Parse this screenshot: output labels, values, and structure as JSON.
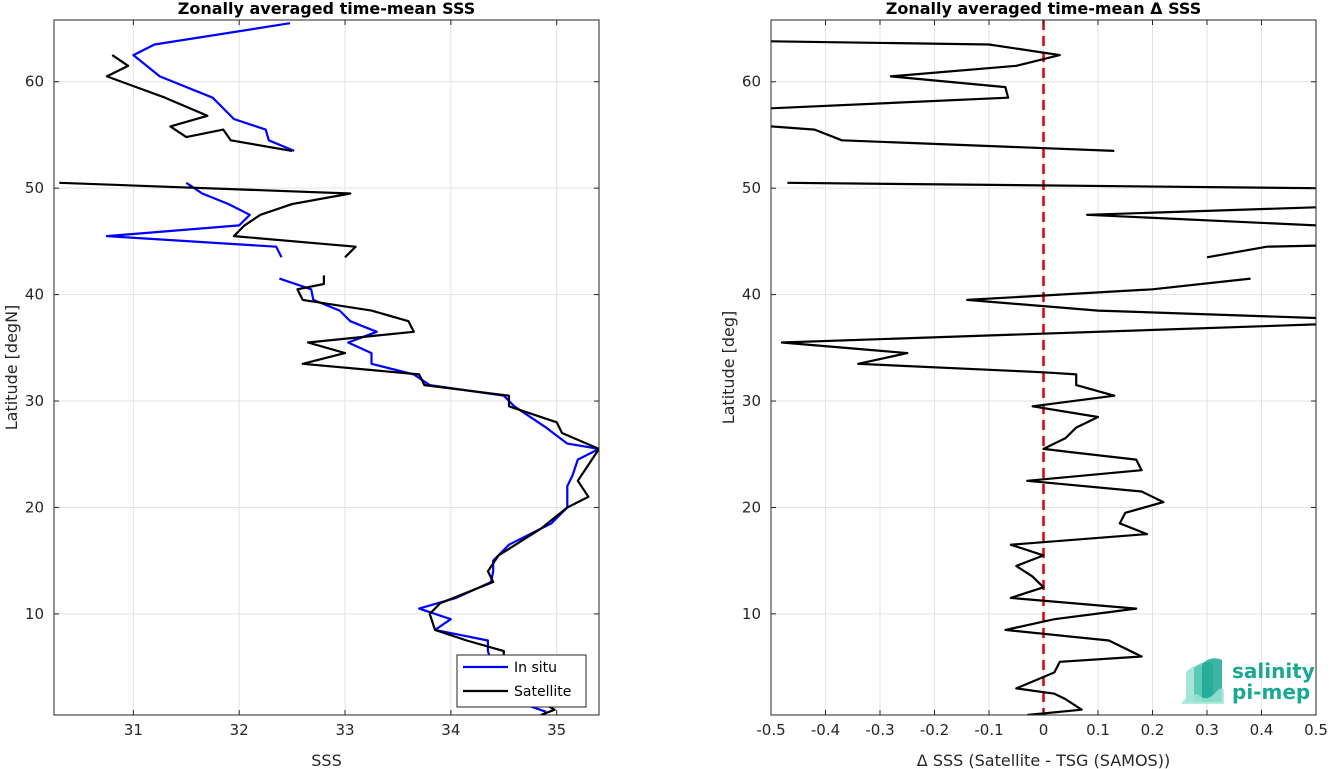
{
  "chart_data": [
    {
      "type": "line",
      "title": "Zonally averaged time-mean SSS",
      "xlabel": "SSS",
      "ylabel": "Latitude [degN]",
      "xlim": [
        30.25,
        35.4
      ],
      "ylim": [
        0.5,
        65.8
      ],
      "x_ticks": [
        31,
        32,
        33,
        34,
        35
      ],
      "y_ticks": [
        10,
        20,
        30,
        40,
        50,
        60
      ],
      "grid": true,
      "legend": {
        "position": "bottom-right",
        "entries": [
          "In situ",
          "Satellite"
        ]
      },
      "series": [
        {
          "name": "In situ",
          "color": "#0000ff",
          "segments": [
            [
              [
                32.48,
                65.5
              ],
              [
                31.2,
                63.5
              ],
              [
                31.0,
                62.5
              ],
              [
                31.25,
                60.5
              ],
              [
                31.75,
                58.5
              ],
              [
                31.95,
                56.5
              ],
              [
                32.25,
                55.5
              ],
              [
                32.28,
                54.5
              ],
              [
                32.52,
                53.5
              ]
            ],
            [
              [
                31.5,
                50.5
              ],
              [
                31.65,
                49.5
              ],
              [
                31.9,
                48.5
              ],
              [
                32.1,
                47.5
              ],
              [
                32.0,
                46.5
              ],
              [
                30.75,
                45.5
              ],
              [
                32.35,
                44.5
              ],
              [
                32.4,
                43.5
              ]
            ],
            [
              [
                32.38,
                41.5
              ],
              [
                32.68,
                40.5
              ],
              [
                32.7,
                39.5
              ],
              [
                32.95,
                38.5
              ],
              [
                33.05,
                37.5
              ],
              [
                33.3,
                36.5
              ],
              [
                33.03,
                35.5
              ],
              [
                33.25,
                34.5
              ],
              [
                33.25,
                33.5
              ],
              [
                33.65,
                32.5
              ],
              [
                33.8,
                31.5
              ],
              [
                34.5,
                30.5
              ],
              [
                34.6,
                29.5
              ],
              [
                34.9,
                27.5
              ],
              [
                35.1,
                26.0
              ],
              [
                35.4,
                25.5
              ],
              [
                35.2,
                24.5
              ],
              [
                35.15,
                23.0
              ],
              [
                35.1,
                22.0
              ],
              [
                35.1,
                21.0
              ],
              [
                35.1,
                20.0
              ],
              [
                34.95,
                18.5
              ],
              [
                34.55,
                16.5
              ],
              [
                34.4,
                15.0
              ],
              [
                34.4,
                14.0
              ],
              [
                34.38,
                13.0
              ],
              [
                34.05,
                11.5
              ],
              [
                33.7,
                10.5
              ],
              [
                34.0,
                9.5
              ],
              [
                33.85,
                8.5
              ],
              [
                34.35,
                7.5
              ],
              [
                34.35,
                6.5
              ],
              [
                34.4,
                5.0
              ],
              [
                34.55,
                3.5
              ],
              [
                34.8,
                2.5
              ],
              [
                34.7,
                1.5
              ],
              [
                34.9,
                0.8
              ]
            ]
          ]
        },
        {
          "name": "Satellite",
          "color": "#000000",
          "segments": [
            [
              [
                30.8,
                62.5
              ],
              [
                30.95,
                61.5
              ],
              [
                30.75,
                60.5
              ],
              [
                31.3,
                58.5
              ],
              [
                31.7,
                56.8
              ],
              [
                31.35,
                55.8
              ],
              [
                31.5,
                54.8
              ],
              [
                31.85,
                55.5
              ],
              [
                31.92,
                54.5
              ],
              [
                32.5,
                53.5
              ]
            ],
            [
              [
                30.3,
                50.5
              ],
              [
                33.05,
                49.5
              ],
              [
                32.5,
                48.5
              ],
              [
                32.2,
                47.5
              ],
              [
                32.05,
                46.5
              ],
              [
                31.95,
                45.5
              ],
              [
                33.1,
                44.5
              ],
              [
                33.0,
                43.5
              ]
            ],
            [
              [
                32.8,
                41.8
              ],
              [
                32.8,
                41.0
              ],
              [
                32.55,
                40.5
              ],
              [
                32.6,
                39.5
              ],
              [
                33.25,
                38.5
              ],
              [
                33.6,
                37.5
              ],
              [
                33.65,
                36.5
              ],
              [
                32.65,
                35.5
              ],
              [
                33.0,
                34.5
              ],
              [
                32.6,
                33.5
              ],
              [
                33.7,
                32.5
              ],
              [
                33.75,
                31.5
              ],
              [
                34.55,
                30.5
              ],
              [
                34.55,
                29.5
              ],
              [
                35.0,
                28.0
              ],
              [
                35.05,
                27.0
              ],
              [
                35.4,
                25.5
              ],
              [
                35.3,
                24.0
              ],
              [
                35.2,
                22.5
              ],
              [
                35.3,
                21.0
              ],
              [
                35.1,
                20.0
              ],
              [
                34.85,
                18.0
              ],
              [
                34.45,
                15.5
              ],
              [
                34.35,
                14.0
              ],
              [
                34.4,
                13.0
              ],
              [
                33.9,
                11.0
              ],
              [
                33.8,
                10.0
              ],
              [
                33.85,
                8.5
              ],
              [
                34.15,
                7.5
              ],
              [
                34.5,
                6.5
              ],
              [
                34.5,
                5.0
              ],
              [
                34.6,
                3.5
              ],
              [
                34.8,
                2.0
              ],
              [
                34.98,
                1.0
              ],
              [
                34.85,
                0.5
              ]
            ]
          ]
        }
      ]
    },
    {
      "type": "line",
      "title": "Zonally averaged time-mean Δ SSS",
      "xlabel": "Δ SSS (Satellite - TSG (SAMOS))",
      "ylabel": "Latitude [deg]",
      "xlim": [
        -0.5,
        0.5
      ],
      "ylim": [
        0.5,
        65.8
      ],
      "x_ticks": [
        -0.5,
        -0.4,
        -0.3,
        -0.2,
        -0.1,
        0,
        0.1,
        0.2,
        0.3,
        0.4,
        0.5
      ],
      "x_tick_labels": [
        "-0.5",
        "-0.4",
        "-0.3",
        "-0.2",
        "-0.1",
        "0",
        "0.1",
        "0.2",
        "0.3",
        "0.4",
        "0.5"
      ],
      "y_ticks": [
        10,
        20,
        30,
        40,
        50,
        60
      ],
      "grid": true,
      "reference_line": {
        "x": 0,
        "color": "#dd0000",
        "style": "dashed"
      },
      "series": [
        {
          "color": "#000000",
          "segments": [
            [
              [
                -0.5,
                63.8
              ],
              [
                -0.1,
                63.5
              ],
              [
                0.03,
                62.5
              ],
              [
                -0.05,
                61.5
              ],
              [
                -0.28,
                60.5
              ],
              [
                -0.07,
                59.5
              ],
              [
                -0.065,
                58.5
              ],
              [
                -0.5,
                57.5
              ]
            ],
            [
              [
                -0.5,
                55.8
              ],
              [
                -0.42,
                55.5
              ],
              [
                -0.37,
                54.5
              ],
              [
                0.13,
                53.5
              ]
            ],
            [
              [
                -0.47,
                50.5
              ],
              [
                0.5,
                50.0
              ]
            ],
            [
              [
                0.5,
                48.2
              ],
              [
                0.08,
                47.5
              ],
              [
                0.5,
                46.5
              ]
            ],
            [
              [
                0.5,
                44.6
              ],
              [
                0.41,
                44.5
              ],
              [
                0.3,
                43.5
              ]
            ],
            [
              [
                0.38,
                41.5
              ],
              [
                0.2,
                40.5
              ],
              [
                -0.14,
                39.5
              ],
              [
                0.1,
                38.5
              ],
              [
                0.5,
                37.8
              ]
            ],
            [
              [
                0.5,
                37.2
              ],
              [
                -0.48,
                35.5
              ],
              [
                -0.25,
                34.5
              ],
              [
                -0.34,
                33.5
              ],
              [
                0.0,
                32.7
              ],
              [
                0.06,
                32.5
              ],
              [
                0.06,
                31.5
              ],
              [
                0.13,
                30.5
              ],
              [
                -0.02,
                29.5
              ],
              [
                0.1,
                28.5
              ],
              [
                0.06,
                27.5
              ],
              [
                0.04,
                26.5
              ],
              [
                0.0,
                25.5
              ],
              [
                0.05,
                25.2
              ],
              [
                0.17,
                24.5
              ],
              [
                0.18,
                23.5
              ],
              [
                -0.03,
                22.5
              ],
              [
                0.18,
                21.5
              ],
              [
                0.22,
                20.5
              ],
              [
                0.15,
                19.5
              ],
              [
                0.14,
                18.5
              ],
              [
                0.19,
                17.5
              ],
              [
                -0.06,
                16.5
              ],
              [
                0.0,
                15.5
              ],
              [
                -0.05,
                14.5
              ],
              [
                -0.02,
                13.5
              ],
              [
                0.0,
                12.5
              ],
              [
                -0.06,
                11.5
              ],
              [
                0.17,
                10.5
              ],
              [
                0.02,
                9.5
              ],
              [
                -0.07,
                8.5
              ],
              [
                0.12,
                7.5
              ],
              [
                0.18,
                6.0
              ],
              [
                0.03,
                5.5
              ],
              [
                0.02,
                4.5
              ],
              [
                -0.05,
                3.0
              ],
              [
                0.02,
                2.5
              ],
              [
                0.04,
                2.0
              ],
              [
                0.07,
                1.0
              ],
              [
                -0.03,
                0.5
              ]
            ]
          ]
        }
      ]
    }
  ],
  "logo": {
    "line1": "salinity",
    "line2": "pi-mep",
    "color": "#1aa894"
  }
}
